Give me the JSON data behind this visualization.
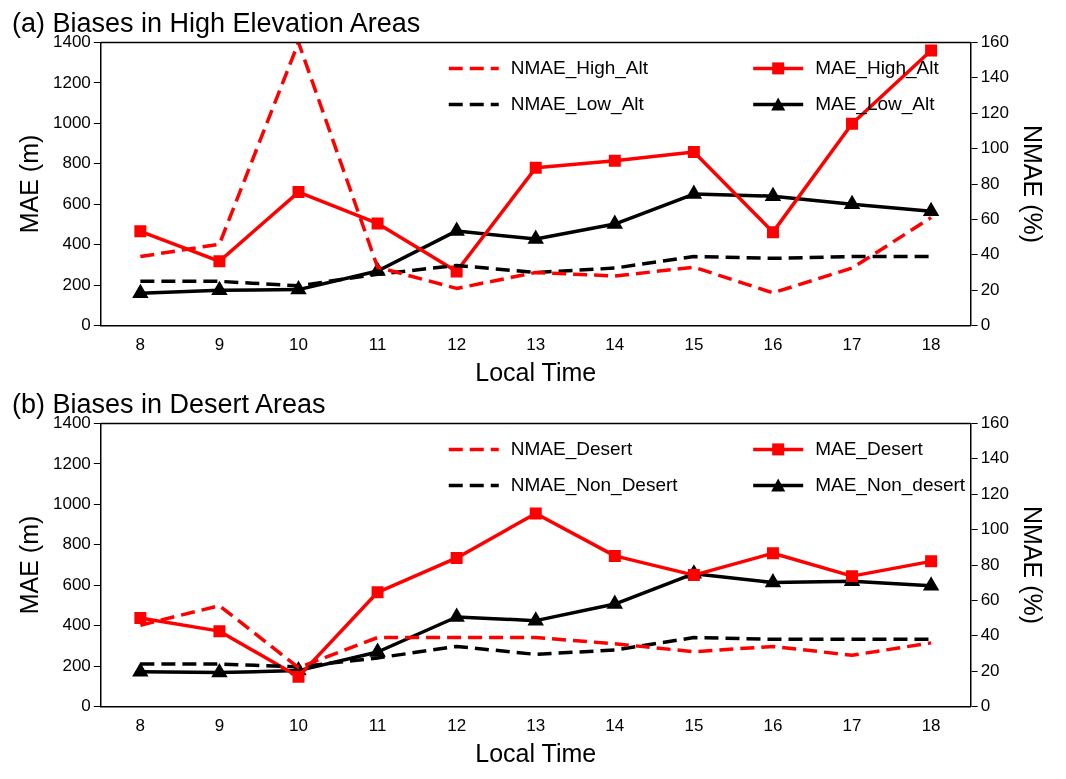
{
  "chart_data": [
    {
      "type": "line",
      "title": "(a) Biases in High Elevation Areas",
      "xlabel": "Local Time",
      "ylabel": "MAE (m)",
      "y2label": "NMAE (%)",
      "categories": [
        "8",
        "9",
        "10",
        "11",
        "12",
        "13",
        "14",
        "15",
        "16",
        "17",
        "18"
      ],
      "ylim": [
        0,
        1400
      ],
      "yticks": [
        0,
        200,
        400,
        600,
        800,
        1000,
        1200,
        1400
      ],
      "y2lim": [
        0,
        160
      ],
      "y2ticks": [
        0,
        20,
        40,
        60,
        80,
        100,
        120,
        140,
        160
      ],
      "grid": false,
      "legend": "top",
      "series": [
        {
          "name": "NMAE_High_Alt",
          "color": "#ff0000",
          "axis": "y2",
          "line_style": "dashed",
          "marker": "none",
          "values": [
            39,
            46,
            160,
            33,
            21,
            30,
            28,
            33,
            18.5,
            32.5,
            61
          ]
        },
        {
          "name": "NMAE_Low_Alt",
          "color": "#000000",
          "axis": "y2",
          "line_style": "dashed",
          "marker": "none",
          "values": [
            25,
            25,
            22.5,
            29,
            34,
            30,
            32.5,
            39,
            38,
            39,
            39
          ]
        },
        {
          "name": "MAE_High_Alt",
          "color": "#ff0000",
          "line_style": "solid",
          "marker": "square",
          "values": [
            466,
            318,
            660,
            505,
            268,
            780,
            815,
            858,
            462,
            998,
            1360
          ]
        },
        {
          "name": "MAE_Low_Alt",
          "color": "#000000",
          "line_style": "solid",
          "marker": "triangle",
          "values": [
            160,
            175,
            178,
            270,
            468,
            428,
            502,
            650,
            640,
            600,
            565
          ]
        }
      ]
    },
    {
      "type": "line",
      "title": "(b) Biases in Desert Areas",
      "xlabel": "Local Time",
      "ylabel": "MAE (m)",
      "y2label": "NMAE (%)",
      "categories": [
        "8",
        "9",
        "10",
        "11",
        "12",
        "13",
        "14",
        "15",
        "16",
        "17",
        "18"
      ],
      "ylim": [
        0,
        1400
      ],
      "yticks": [
        0,
        200,
        400,
        600,
        800,
        1000,
        1200,
        1400
      ],
      "y2lim": [
        0,
        160
      ],
      "y2ticks": [
        0,
        20,
        40,
        60,
        80,
        100,
        120,
        140,
        160
      ],
      "grid": false,
      "legend": "top",
      "series": [
        {
          "name": "NMAE_Desert",
          "color": "#ff0000",
          "axis": "y2",
          "line_style": "dashed",
          "marker": "none",
          "values": [
            46,
            57,
            22,
            39,
            39,
            39,
            35.5,
            31,
            34,
            29,
            36
          ]
        },
        {
          "name": "NMAE_Non_Desert",
          "color": "#000000",
          "axis": "y2",
          "line_style": "dashed",
          "marker": "none",
          "values": [
            24,
            24,
            22.5,
            27.5,
            34,
            29.5,
            32,
            39,
            38,
            38,
            38
          ]
        },
        {
          "name": "MAE_Desert",
          "color": "#ff0000",
          "line_style": "solid",
          "marker": "square",
          "values": [
            438,
            373,
            148,
            565,
            735,
            955,
            745,
            650,
            758,
            645,
            718
          ]
        },
        {
          "name": "MAE_Non_desert",
          "color": "#000000",
          "line_style": "solid",
          "marker": "triangle",
          "values": [
            172,
            168,
            178,
            270,
            443,
            425,
            507,
            657,
            613,
            620,
            597
          ]
        }
      ]
    }
  ]
}
